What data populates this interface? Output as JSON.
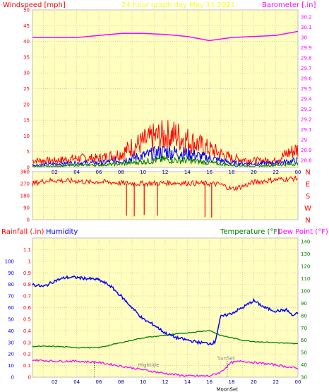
{
  "chart_data": [
    {
      "type": "line",
      "title": "24 hour graph day   May 11 2021",
      "left_label": "Windspeed [mph]",
      "right_label": "Barometer [.in]",
      "left_ticks": [
        "0",
        "5",
        "10",
        "15",
        "20",
        "25",
        "30",
        "35",
        "40",
        "45",
        "50"
      ],
      "ylim_left": [
        0,
        50
      ],
      "right_ticks": [
        "28.8",
        "28.9",
        "29",
        "29.1",
        "29.2",
        "29.3",
        "29.4",
        "29.5",
        "29.6",
        "29.7",
        "29.8",
        "29.9",
        "30",
        "30.1",
        "30.2"
      ],
      "ylim_right": [
        28.73,
        30.27
      ],
      "x_ticks": [
        "02",
        "04",
        "06",
        "08",
        "10",
        "12",
        "14",
        "16",
        "18",
        "20",
        "22",
        "00"
      ],
      "xlim": [
        0,
        24
      ],
      "grid": true,
      "series": [
        {
          "color": "#ff00ff",
          "axis": "right",
          "x": [
            0,
            2,
            4,
            6,
            8,
            10,
            12,
            14,
            16,
            18,
            20,
            22,
            24
          ],
          "values": [
            30.0,
            30.0,
            30.0,
            30.02,
            30.04,
            30.04,
            30.03,
            30.01,
            29.97,
            30.0,
            30.01,
            30.02,
            30.06
          ]
        },
        {
          "color": "#ff0000",
          "axis": "left",
          "x": [
            0,
            2,
            4,
            6,
            8,
            9,
            10,
            11,
            12,
            13,
            14,
            15,
            16,
            17,
            18,
            20,
            22,
            23,
            24
          ],
          "values": [
            3,
            3,
            4,
            4,
            6,
            9,
            11,
            13,
            14,
            14,
            12,
            10,
            8,
            6,
            4,
            3,
            3,
            6,
            8
          ]
        },
        {
          "color": "#0000ff",
          "axis": "left",
          "x": [
            0,
            2,
            4,
            6,
            8,
            10,
            12,
            14,
            16,
            18,
            20,
            22,
            24
          ],
          "values": [
            1,
            1.5,
            2,
            2,
            3,
            5,
            7,
            6,
            4,
            2,
            1.5,
            2,
            3
          ]
        },
        {
          "color": "#008000",
          "axis": "left",
          "x": [
            0,
            2,
            4,
            6,
            8,
            10,
            12,
            14,
            16,
            18,
            20,
            22,
            24
          ],
          "values": [
            0.5,
            0.5,
            1,
            1,
            1.5,
            2.5,
            3.5,
            3,
            2,
            1,
            0.5,
            1,
            1.5
          ]
        }
      ]
    },
    {
      "type": "line",
      "left_ticks": [
        "0",
        "90",
        "180",
        "270",
        "360"
      ],
      "ylim_left": [
        0,
        360
      ],
      "right_ticks": [
        "N",
        "W",
        "S",
        "E",
        "N"
      ],
      "x_ticks": [],
      "xlim": [
        0,
        24
      ],
      "grid": true,
      "series": [
        {
          "color": "#ff0000",
          "x": [
            0,
            1,
            2,
            3,
            4,
            5,
            6,
            7,
            8,
            10,
            12,
            14,
            16,
            17,
            18,
            19,
            20,
            22,
            24
          ],
          "values": [
            270,
            290,
            295,
            290,
            290,
            280,
            285,
            280,
            275,
            270,
            275,
            275,
            270,
            265,
            230,
            250,
            280,
            300,
            310
          ]
        }
      ],
      "spikes": [
        {
          "x": 8.5,
          "from": 270,
          "to": 30
        },
        {
          "x": 9.2,
          "from": 270,
          "to": 25
        },
        {
          "x": 10.1,
          "from": 270,
          "to": 35
        },
        {
          "x": 11.3,
          "from": 270,
          "to": 30
        },
        {
          "x": 15.6,
          "from": 270,
          "to": 20
        },
        {
          "x": 16.2,
          "from": 270,
          "to": 15
        }
      ]
    },
    {
      "type": "line",
      "rain_label": "Rainfall (.in)",
      "humidity_label": "Humidity",
      "temp_label": "Temperature (°F)",
      "dew_label": "Dew Point (°F)",
      "humidity_ticks": [
        "0",
        "10",
        "20",
        "30",
        "40",
        "50",
        "60",
        "70",
        "80",
        "90",
        "100"
      ],
      "rain_ticks": [
        "0",
        "0.1",
        "0.2",
        "0.3",
        "0.4",
        "0.5",
        "0.6",
        "0.7",
        "0.8",
        "0.9",
        "1",
        "1.1"
      ],
      "ylim_rain": [
        0,
        1.2
      ],
      "temp_ticks": [
        "30",
        "40",
        "50",
        "60",
        "70",
        "80",
        "90",
        "100",
        "110",
        "120",
        "130",
        "140"
      ],
      "ylim_temp": [
        30,
        143
      ],
      "x_ticks": [
        "02",
        "04",
        "06",
        "08",
        "10",
        "12",
        "14",
        "16",
        "18",
        "20",
        "22",
        "00"
      ],
      "xlim": [
        0,
        24
      ],
      "grid": true,
      "annotations": [
        {
          "text": "Hightide",
          "x": 10.5,
          "y": 0.09,
          "color": "#808080"
        },
        {
          "text": "SunSet",
          "x": 17.5,
          "y": 0.15,
          "color": "#808080"
        },
        {
          "text": "MoonSet",
          "x": 17.6,
          "y": -0.12,
          "color": "#000000"
        }
      ],
      "series": [
        {
          "color": "#0000ff",
          "axis": "humidity",
          "x": [
            0,
            1,
            2,
            3,
            4,
            5,
            6,
            7,
            8,
            9,
            10,
            11,
            12,
            13,
            14,
            15,
            16,
            16.5,
            17,
            18,
            19,
            20,
            21,
            22,
            23,
            23.5,
            24
          ],
          "values": [
            80,
            78,
            83,
            86,
            86,
            85,
            84,
            79,
            70,
            60,
            50,
            45,
            38,
            34,
            32,
            30,
            29,
            30,
            52,
            55,
            60,
            66,
            60,
            57,
            58,
            53,
            55
          ]
        },
        {
          "color": "#008000",
          "axis": "temp",
          "x": [
            0,
            2,
            4,
            6,
            8,
            10,
            12,
            14,
            15,
            16,
            17,
            18,
            19,
            20,
            22,
            24
          ],
          "values": [
            55,
            55,
            54,
            54,
            58,
            62,
            64,
            66,
            67,
            68,
            64,
            62,
            60,
            59,
            58,
            57
          ]
        },
        {
          "color": "#ff00ff",
          "axis": "temp",
          "x": [
            0,
            2,
            4,
            6,
            8,
            10,
            12,
            14,
            16,
            17,
            18,
            19,
            20,
            22,
            24
          ],
          "values": [
            44,
            43,
            43,
            42,
            39,
            36,
            33,
            31,
            31,
            34,
            42,
            43,
            42,
            40,
            37
          ]
        }
      ]
    }
  ]
}
